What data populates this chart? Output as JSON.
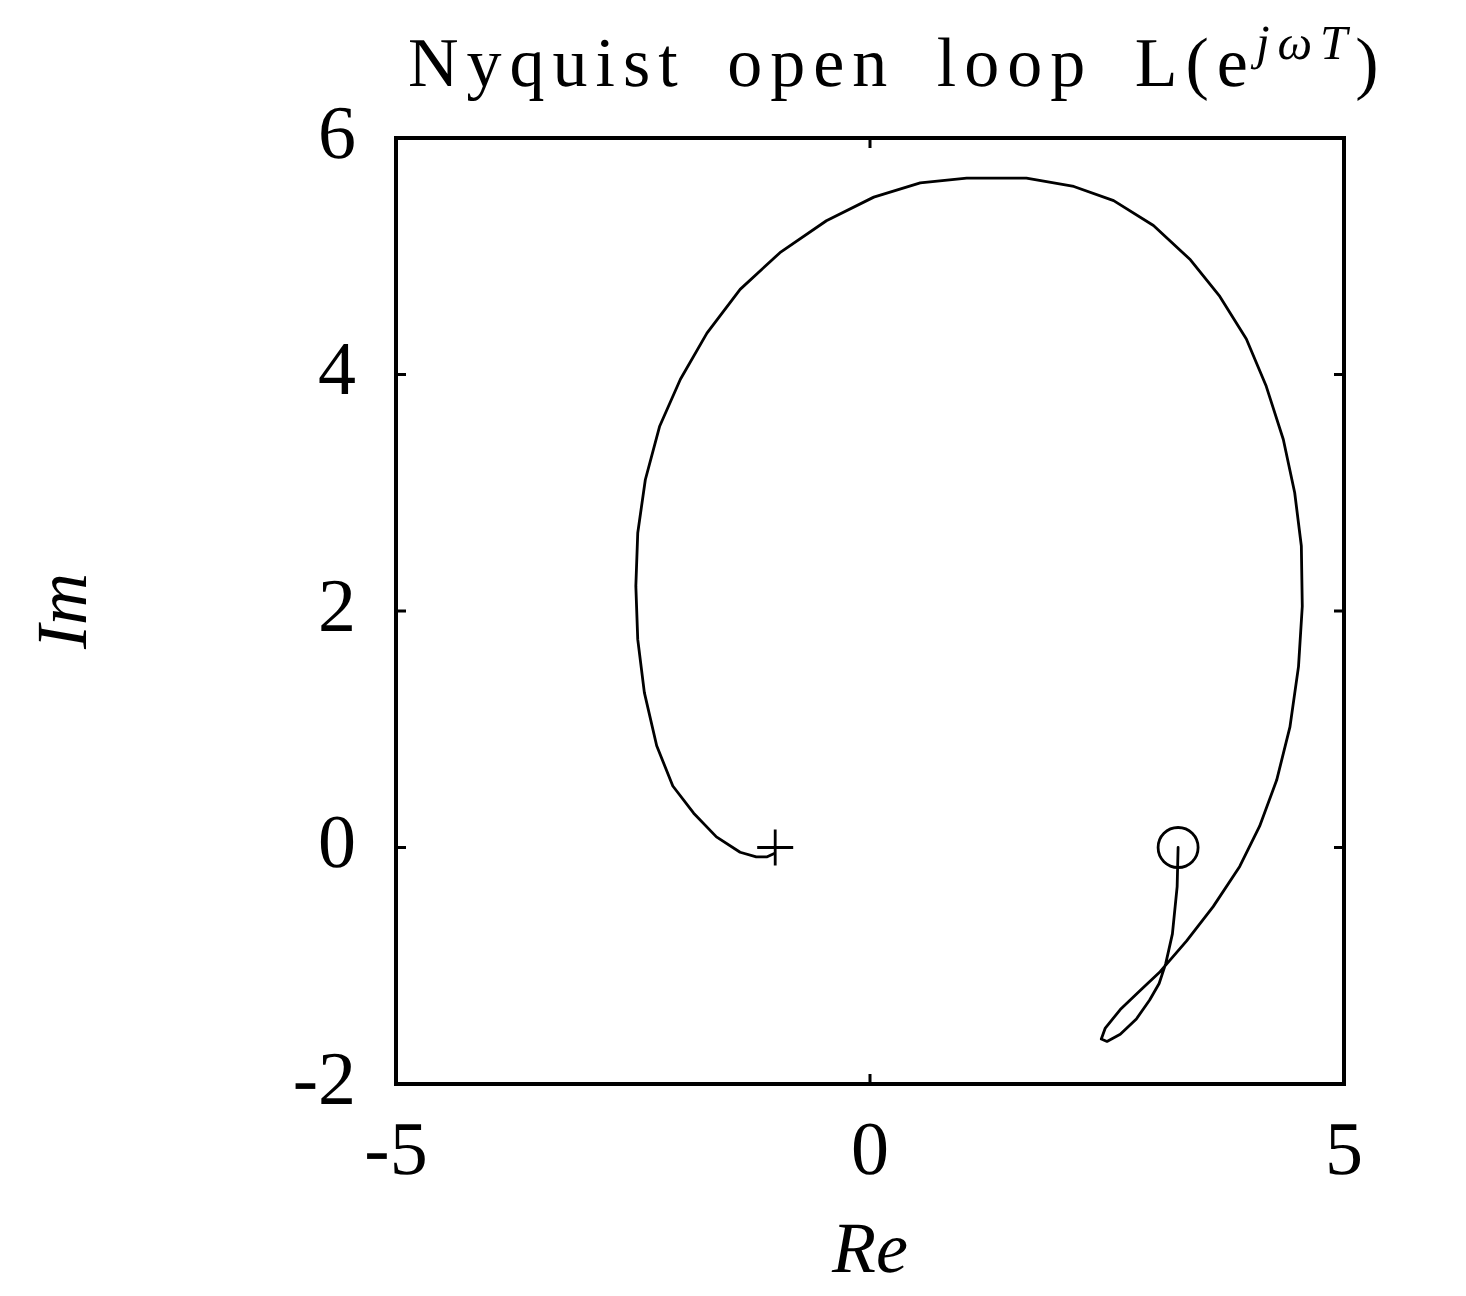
{
  "chart_data": {
    "type": "line",
    "title": "Nyquist open loop L(e$^{jωT}$)",
    "xlabel": "Re",
    "ylabel": "Im",
    "xlim": [
      -5,
      5
    ],
    "ylim": [
      -2,
      6
    ],
    "xticks": [
      -5,
      0,
      5
    ],
    "yticks": [
      -2,
      0,
      2,
      4,
      6
    ],
    "grid": false,
    "legend": false,
    "series": [
      {
        "type": "line",
        "color": "#000000",
        "marker": "none",
        "line_style": "solid",
        "x": [
          3.25,
          3.24,
          3.19,
          3.12,
          3.05,
          2.95,
          2.81,
          2.64,
          2.5,
          2.44,
          2.48,
          2.64,
          2.85,
          3.06,
          3.34,
          3.62,
          3.9,
          4.11,
          4.29,
          4.43,
          4.52,
          4.56,
          4.55,
          4.48,
          4.36,
          4.18,
          3.97,
          3.69,
          3.38,
          2.99,
          2.57,
          2.15,
          1.65,
          1.02,
          0.53,
          0.04,
          -0.46,
          -0.95,
          -1.37,
          -1.72,
          -2.0,
          -2.22,
          -2.37,
          -2.45,
          -2.47,
          -2.45,
          -2.38,
          -2.25,
          -2.08,
          -1.86,
          -1.62,
          -1.37,
          -1.2,
          -1.09,
          -1.01
        ],
        "values": [
          0.0,
          -0.33,
          -0.73,
          -0.98,
          -1.15,
          -1.29,
          -1.45,
          -1.58,
          -1.64,
          -1.62,
          -1.53,
          -1.37,
          -1.21,
          -1.05,
          -0.79,
          -0.5,
          -0.16,
          0.18,
          0.57,
          1.02,
          1.53,
          2.04,
          2.55,
          3.0,
          3.45,
          3.9,
          4.3,
          4.66,
          4.97,
          5.26,
          5.47,
          5.59,
          5.66,
          5.66,
          5.62,
          5.5,
          5.3,
          5.03,
          4.72,
          4.35,
          3.96,
          3.56,
          3.11,
          2.66,
          2.21,
          1.76,
          1.31,
          0.86,
          0.52,
          0.29,
          0.09,
          -0.04,
          -0.08,
          -0.08,
          -0.05
        ]
      },
      {
        "type": "scatter",
        "color": "#000000",
        "marker": "cross",
        "x": [
          -1
        ],
        "values": [
          0
        ]
      },
      {
        "type": "scatter",
        "color": "#000000",
        "marker": "circle",
        "x": [
          3.25
        ],
        "values": [
          0
        ]
      }
    ]
  }
}
